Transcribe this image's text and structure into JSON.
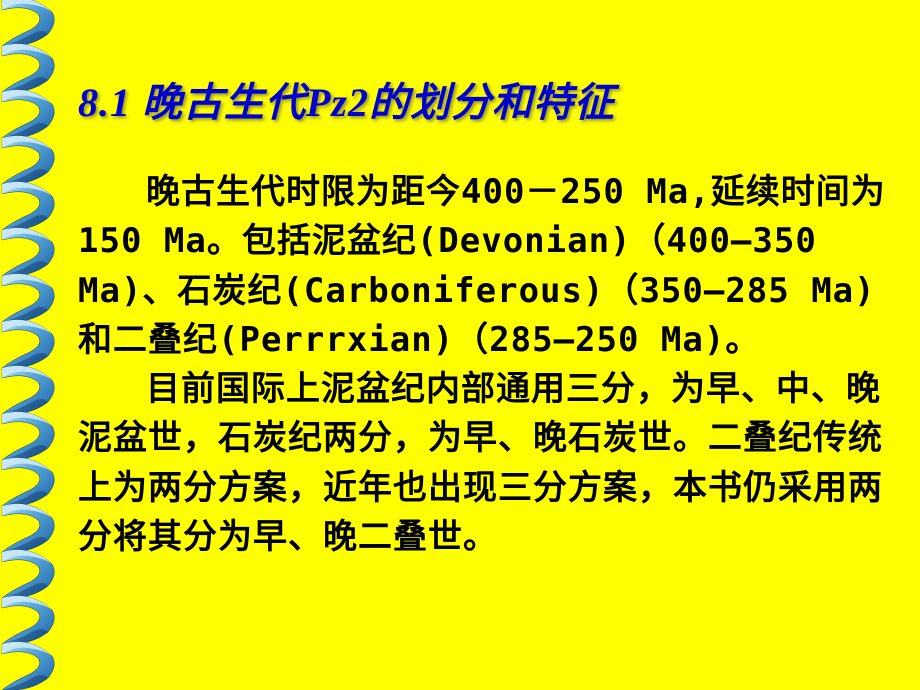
{
  "slide": {
    "title": "8.1 晚古生代Pz2的划分和特征",
    "paragraph1": "晚古生代时限为距今400－250 Ma,延续时间为150 Ma。包括泥盆纪(Devonian)（400—350 Ma)、石炭纪(Carboniferous)（350—285 Ma)和二叠纪(Perrrxian)（285—250 Ma)。",
    "paragraph2": "目前国际上泥盆纪内部通用三分，为早、中、晚泥盆世，石炭纪两分，为早、晚石炭世。二叠纪传统上为两分方案，近年也出现三分方案，本书仍采用两分将其分为早、晚二叠世。"
  },
  "style": {
    "background_color": "#ffff00",
    "title_color": "#0000cc",
    "title_fontsize": 40,
    "body_fontsize": 34,
    "body_color": "#000000",
    "spiral_color_light": "#7ec8f0",
    "spiral_color_dark": "#1a5fa8",
    "spiral_segments": 15
  }
}
